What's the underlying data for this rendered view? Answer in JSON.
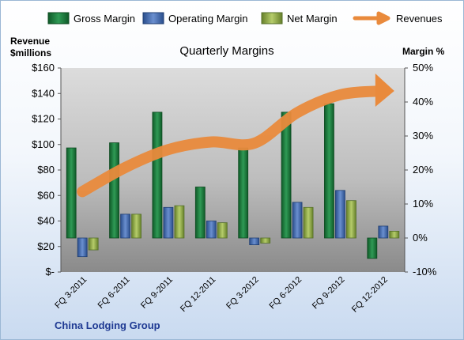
{
  "chart_data": {
    "type": "bar",
    "title": "Quarterly Margins",
    "footer": "China Lodging Group",
    "y_left_title_line1": "Revenue",
    "y_left_title_line2": "$millions",
    "y_right_title": "Margin %",
    "categories": [
      "FQ 3-2011",
      "FQ 6-2011",
      "FQ 9-2011",
      "FQ 12-2011",
      "FQ 3-2012",
      "FQ 6-2012",
      "FQ 9-2012",
      "FQ 12-2012"
    ],
    "left_axis": {
      "min": 0,
      "max": 160,
      "step": 20,
      "tick_labels": [
        "$-",
        "$20",
        "$40",
        "$60",
        "$80",
        "$100",
        "$120",
        "$140",
        "$160"
      ]
    },
    "right_axis": {
      "min": -10,
      "max": 50,
      "step": 10,
      "tick_labels": [
        "-10%",
        "0%",
        "10%",
        "20%",
        "30%",
        "40%",
        "50%"
      ]
    },
    "series": [
      {
        "name": "Gross Margin",
        "axis": "right",
        "kind": "bar",
        "color": "#1e7a3c",
        "values": [
          26.5,
          28,
          37,
          15,
          26.5,
          37,
          39.5,
          -6
        ]
      },
      {
        "name": "Operating Margin",
        "axis": "right",
        "kind": "bar",
        "color": "#3a64a8",
        "values": [
          -5.5,
          7,
          9,
          5,
          -2,
          10.5,
          14,
          3.5
        ]
      },
      {
        "name": "Net Margin",
        "axis": "right",
        "kind": "bar",
        "color": "#8aa63c",
        "values": [
          -3.5,
          7,
          9.5,
          4.5,
          -1.5,
          9,
          11,
          2
        ]
      },
      {
        "name": "Revenues",
        "axis": "left",
        "kind": "line",
        "color": "#e98a3c",
        "values": [
          63,
          82,
          96,
          102,
          101,
          125,
          139,
          142
        ]
      }
    ],
    "legend_position": "top",
    "grid": false
  }
}
